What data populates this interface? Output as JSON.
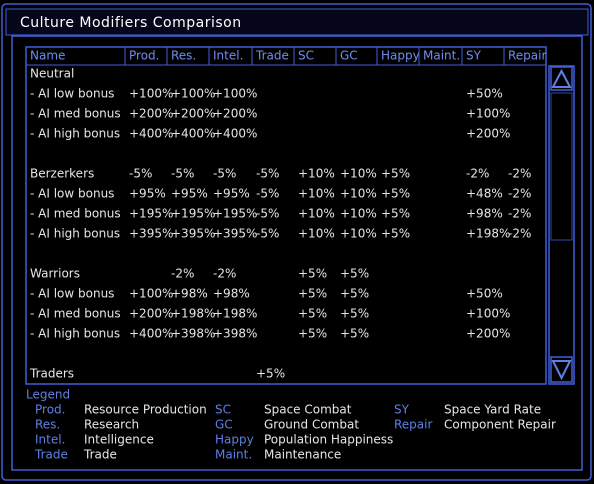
{
  "title": "Culture Modifiers Comparison",
  "table": {
    "headers": [
      "Name",
      "Prod.",
      "Res.",
      "Intel.",
      "Trade",
      "SC",
      "GC",
      "Happy",
      "Maint.",
      "SY",
      "Repair"
    ],
    "groups": [
      {
        "rows": [
          [
            "Neutral",
            null,
            null,
            null,
            null,
            null,
            null,
            null,
            null,
            null,
            null
          ],
          [
            "- AI low bonus",
            "+100%",
            "+100%",
            "+100%",
            null,
            null,
            null,
            null,
            null,
            "+50%",
            null
          ],
          [
            "- AI med bonus",
            "+200%",
            "+200%",
            "+200%",
            null,
            null,
            null,
            null,
            null,
            "+100%",
            null
          ],
          [
            "- AI high bonus",
            "+400%",
            "+400%",
            "+400%",
            null,
            null,
            null,
            null,
            null,
            "+200%",
            null
          ]
        ]
      },
      {
        "rows": [
          [
            "Berzerkers",
            "-5%",
            "-5%",
            "-5%",
            "-5%",
            "+10%",
            "+10%",
            "+5%",
            null,
            "-2%",
            "-2%"
          ],
          [
            "- AI low bonus",
            "+95%",
            "+95%",
            "+95%",
            "-5%",
            "+10%",
            "+10%",
            "+5%",
            null,
            "+48%",
            "-2%"
          ],
          [
            "- AI med bonus",
            "+195%",
            "+195%",
            "+195%",
            "-5%",
            "+10%",
            "+10%",
            "+5%",
            null,
            "+98%",
            "-2%"
          ],
          [
            "- AI high bonus",
            "+395%",
            "+395%",
            "+395%",
            "-5%",
            "+10%",
            "+10%",
            "+5%",
            null,
            "+198%",
            "-2%"
          ]
        ]
      },
      {
        "rows": [
          [
            "Warriors",
            null,
            "-2%",
            "-2%",
            null,
            "+5%",
            "+5%",
            null,
            null,
            null,
            null
          ],
          [
            "- AI low bonus",
            "+100%",
            "+98%",
            "+98%",
            null,
            "+5%",
            "+5%",
            null,
            null,
            "+50%",
            null
          ],
          [
            "- AI med bonus",
            "+200%",
            "+198%",
            "+198%",
            null,
            "+5%",
            "+5%",
            null,
            null,
            "+100%",
            null
          ],
          [
            "- AI high bonus",
            "+400%",
            "+398%",
            "+398%",
            null,
            "+5%",
            "+5%",
            null,
            null,
            "+200%",
            null
          ]
        ]
      },
      {
        "rows": [
          [
            "Traders",
            null,
            null,
            null,
            "+5%",
            null,
            null,
            null,
            null,
            null,
            null
          ]
        ]
      }
    ]
  },
  "legend": {
    "title": "Legend",
    "columns": [
      [
        [
          "Prod.",
          "Resource Production"
        ],
        [
          "Res.",
          "Research"
        ],
        [
          "Intel.",
          "Intelligence"
        ],
        [
          "Trade",
          "Trade"
        ]
      ],
      [
        [
          "SC",
          "Space Combat"
        ],
        [
          "GC",
          "Ground Combat"
        ],
        [
          "Happy",
          "Population Happiness"
        ],
        [
          "Maint.",
          "Maintenance"
        ]
      ],
      [
        [
          "SY",
          "Space Yard Rate"
        ],
        [
          "Repair",
          "Component Repair"
        ]
      ]
    ]
  }
}
